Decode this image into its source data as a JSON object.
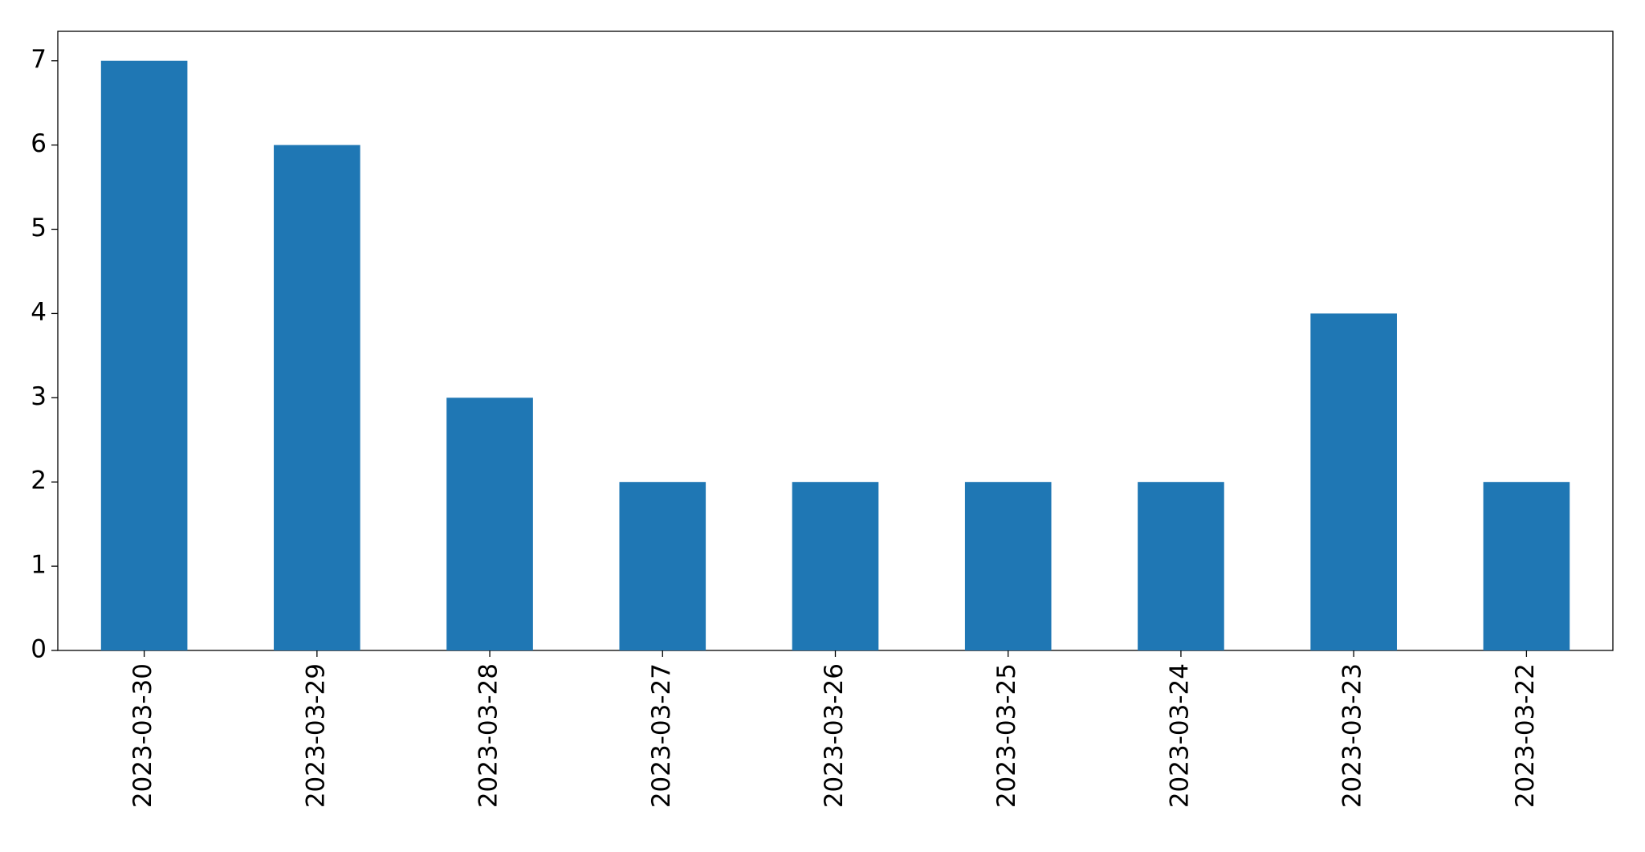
{
  "chart_data": {
    "type": "bar",
    "categories": [
      "2023-03-30",
      "2023-03-29",
      "2023-03-28",
      "2023-03-27",
      "2023-03-26",
      "2023-03-25",
      "2023-03-24",
      "2023-03-23",
      "2023-03-22"
    ],
    "values": [
      7,
      6,
      3,
      2,
      2,
      2,
      2,
      4,
      2
    ],
    "color": "#1f77b4",
    "ylim": [
      0,
      7.35
    ],
    "yticks": [
      0,
      1,
      2,
      3,
      4,
      5,
      6,
      7
    ],
    "grid": false
  }
}
